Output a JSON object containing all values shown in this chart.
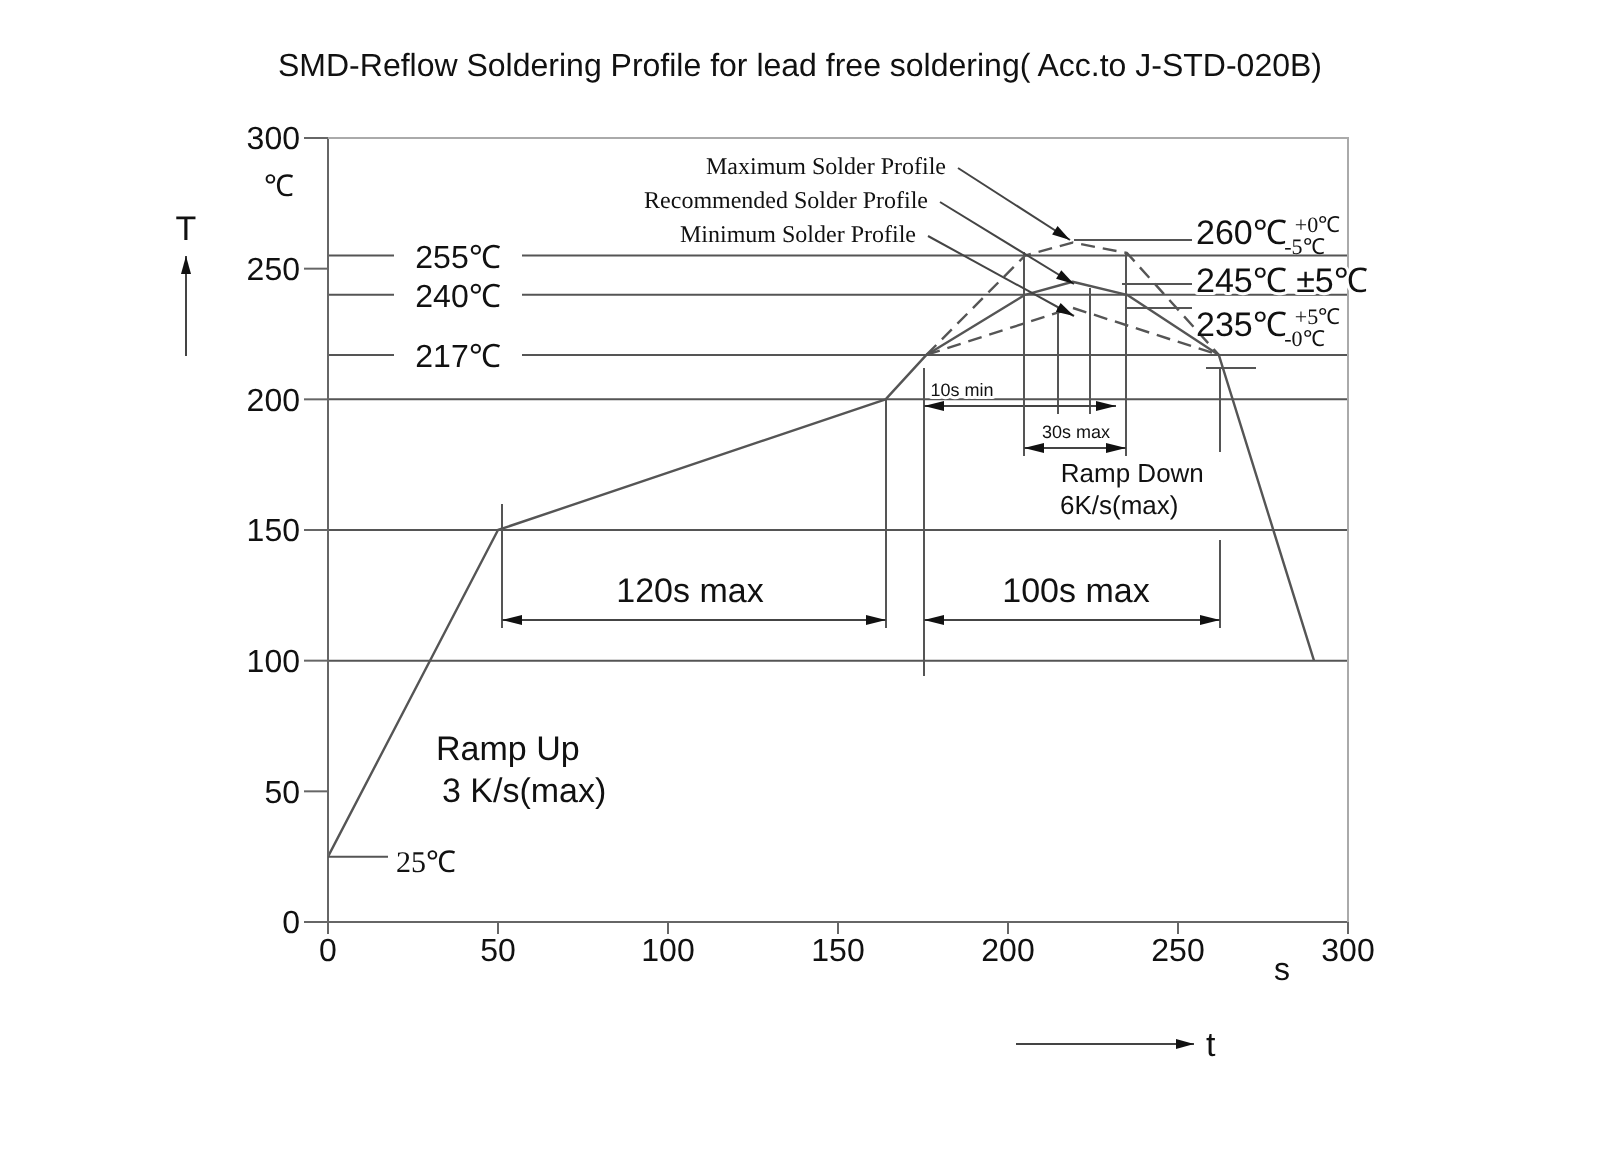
{
  "chart_data": {
    "type": "line",
    "title": "SMD-Reflow Soldering Profile for lead free soldering( Acc.to J-STD-020B)",
    "xlabel": "t",
    "ylabel": "T",
    "xlim": [
      0,
      300
    ],
    "xticks": [
      0,
      50,
      100,
      150,
      200,
      250,
      300
    ],
    "ylim": [
      0,
      300
    ],
    "yticks": [
      0,
      50,
      100,
      150,
      200,
      250,
      300
    ],
    "marker": "none",
    "series": [
      {
        "name": "Maximum Solder Profile",
        "color": "#555555",
        "line_style": "dashed",
        "x": [
          176,
          205,
          219,
          235,
          262
        ],
        "values": [
          217,
          255,
          260,
          256,
          217
        ]
      },
      {
        "name": "Recommended Solder Profile",
        "color": "#555555",
        "line_style": "solid",
        "x": [
          0,
          50,
          164,
          176,
          205,
          219,
          235,
          262,
          290
        ],
        "values": [
          25,
          150,
          200,
          217,
          240,
          245,
          240,
          217,
          100
        ]
      },
      {
        "name": "Minimum Solder Profile",
        "color": "#555555",
        "line_style": "dashed",
        "x": [
          176,
          219,
          262
        ],
        "values": [
          217,
          235,
          217
        ]
      }
    ],
    "ref_lines": [
      {
        "axis": "y",
        "value": 255,
        "label": "255℃"
      },
      {
        "axis": "y",
        "value": 240,
        "label": "240℃"
      },
      {
        "axis": "y",
        "value": 217,
        "label": "217℃"
      },
      {
        "axis": "y",
        "value": 200
      },
      {
        "axis": "y",
        "value": 150
      },
      {
        "axis": "y",
        "value": 100
      }
    ],
    "annotations": [
      "℃",
      "s",
      "25℃",
      "Ramp Up",
      "3 K/s(max)",
      "120s max",
      "100s max",
      {
        "text": "10s min",
        "x": 176,
        "y": 217
      },
      {
        "text": "30s max",
        "x": 205,
        "y": 255
      },
      {
        "text": "Ramp Down",
        "x": 262,
        "y": 217
      },
      "6K/s(max)",
      "260℃ $^{+0℃}$$_{-5℃}$",
      "245℃ ±5℃",
      "235℃ $^{+5℃}$$_{-0℃}$"
    ]
  }
}
